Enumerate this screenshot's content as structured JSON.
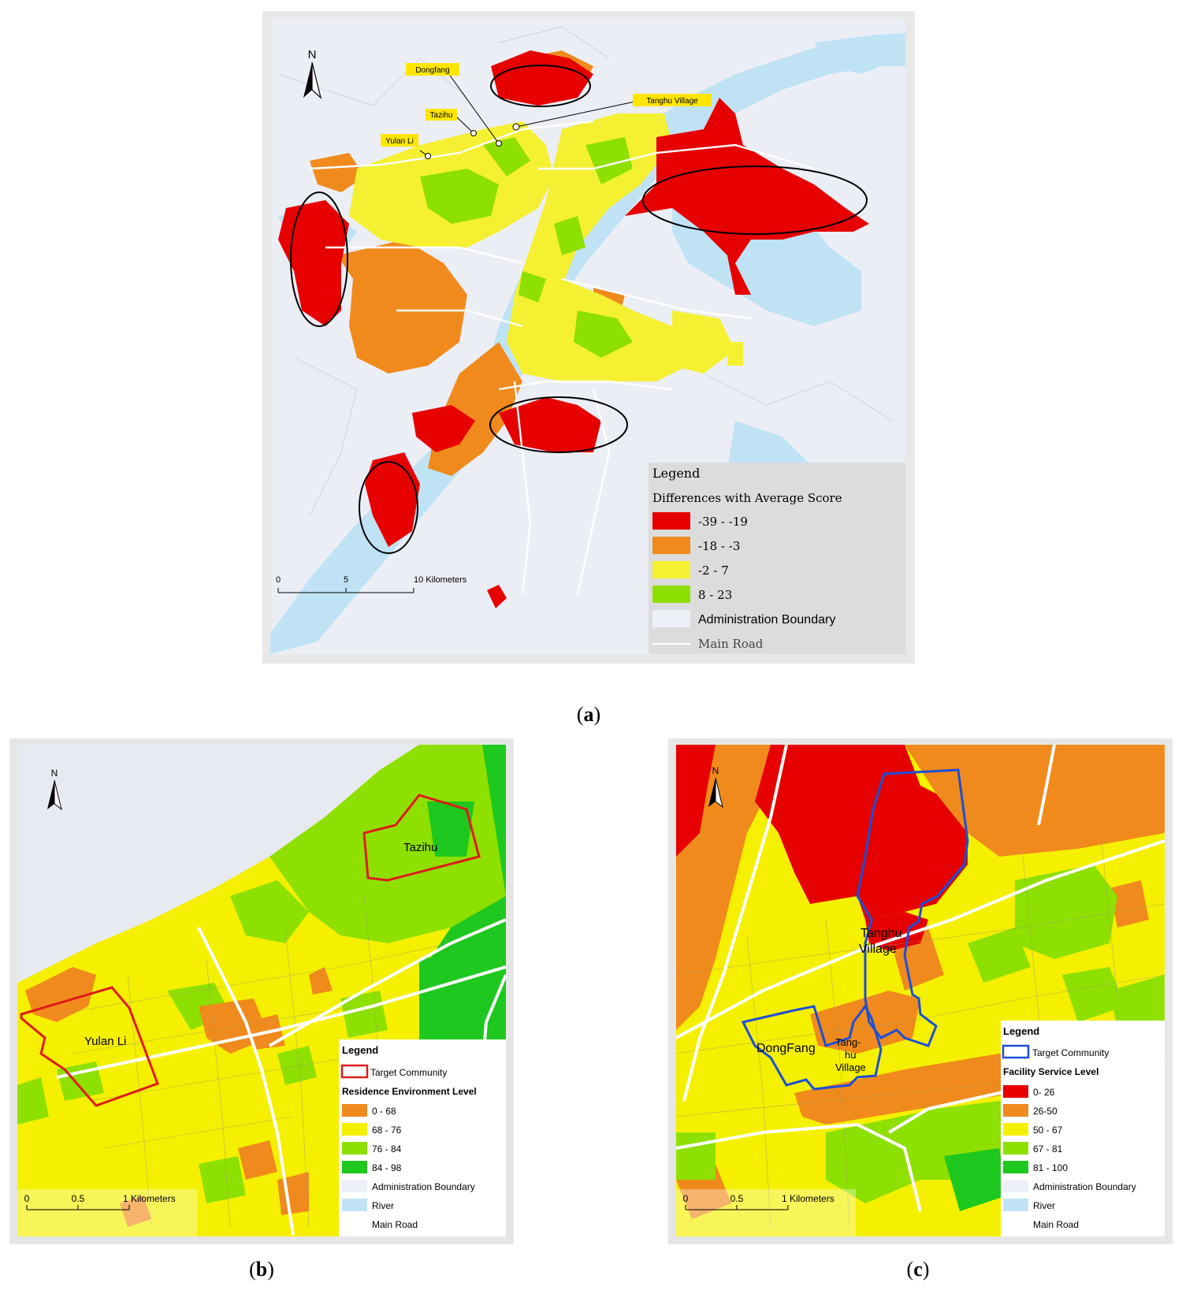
{
  "map_a": {
    "north_label": "N",
    "callouts": [
      "Dongfang",
      "Tazihu",
      "Tanghu Village",
      "Yulan Li"
    ],
    "scale": {
      "ticks": [
        "0",
        "5",
        "10 Kilometers"
      ]
    },
    "legend": {
      "title": "Legend",
      "subtitle": "Differences with Average Score",
      "classes": [
        {
          "label": "-39 - -19",
          "color": "#e60000"
        },
        {
          "label": "-18 - -3",
          "color": "#f08a1c"
        },
        {
          "label": "-2 - 7",
          "color": "#f5f032"
        },
        {
          "label": "8 - 23",
          "color": "#8ee000"
        }
      ],
      "boundary_label": "Administration Boundary",
      "road_label": "Main Road"
    }
  },
  "map_b": {
    "north_label": "N",
    "community_label": "Tazihu",
    "community_label_2": "Yulan Li",
    "scale": {
      "ticks": [
        "0",
        "0.5",
        "1 Kilometers"
      ]
    },
    "legend": {
      "title": "Legend",
      "target": "Target Community",
      "subtitle": "Residence Environment Level",
      "classes": [
        {
          "label": "0 - 68",
          "color": "#f08a1c"
        },
        {
          "label": "68 - 76",
          "color": "#f5f000"
        },
        {
          "label": "76 - 84",
          "color": "#8ee000"
        },
        {
          "label": "84 - 98",
          "color": "#1ec81e"
        }
      ],
      "boundary_label": "Administration Boundary",
      "river_label": "River",
      "road_label": "Main Road"
    }
  },
  "map_c": {
    "north_label": "N",
    "label_tanghu": [
      "Tanghu",
      "Village"
    ],
    "label_dongfang": "DongFang",
    "label_tanghu2": [
      "Tang-",
      "hu",
      "Village"
    ],
    "scale": {
      "ticks": [
        "0",
        "0.5",
        "1 Kilometers"
      ]
    },
    "legend": {
      "title": "Legend",
      "target": "Target Community",
      "subtitle": "Facility Service Level",
      "classes": [
        {
          "label": "0- 26",
          "color": "#e60000"
        },
        {
          "label": "26-50",
          "color": "#f08a1c"
        },
        {
          "label": "50 - 67",
          "color": "#f5f000"
        },
        {
          "label": "67 - 81",
          "color": "#8ee000"
        },
        {
          "label": "81 - 100",
          "color": "#1ec81e"
        }
      ],
      "boundary_label": "Administration Boundary",
      "river_label": "River",
      "road_label": "Main Road"
    }
  },
  "captions": {
    "a": "a",
    "b": "b",
    "c": "c"
  }
}
